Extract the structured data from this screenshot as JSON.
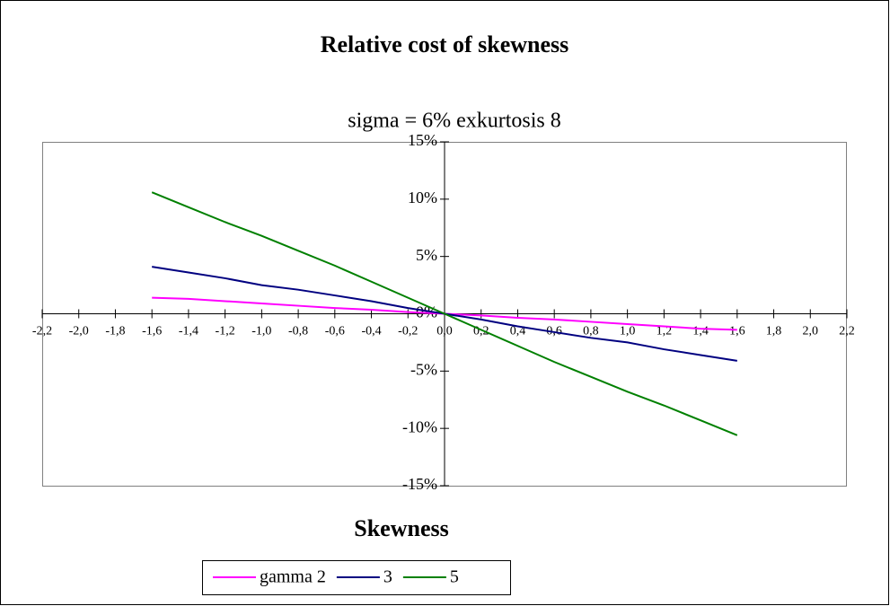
{
  "chart_data": {
    "type": "line",
    "title": "Relative cost of skewness",
    "subtitle": "sigma = 6%  exkurtosis 8",
    "x_label": "Skewness",
    "x": [
      -1.6,
      -1.4,
      -1.2,
      -1.0,
      -0.8,
      -0.6,
      -0.4,
      -0.2,
      0.0,
      0.2,
      0.4,
      0.6,
      0.8,
      1.0,
      1.2,
      1.4,
      1.6
    ],
    "series": [
      {
        "name": "gamma 2",
        "color": "#ff00ff",
        "values": [
          1.4,
          1.3,
          1.1,
          0.9,
          0.7,
          0.5,
          0.35,
          0.15,
          0,
          -0.15,
          -0.35,
          -0.5,
          -0.7,
          -0.9,
          -1.1,
          -1.3,
          -1.4
        ]
      },
      {
        "name": "3",
        "color": "#000080",
        "values": [
          4.1,
          3.6,
          3.1,
          2.5,
          2.1,
          1.6,
          1.1,
          0.5,
          0,
          -0.5,
          -1.1,
          -1.6,
          -2.1,
          -2.5,
          -3.1,
          -3.6,
          -4.1
        ]
      },
      {
        "name": "5",
        "color": "#008000",
        "values": [
          10.6,
          9.3,
          8.0,
          6.8,
          5.5,
          4.2,
          2.8,
          1.4,
          0,
          -1.4,
          -2.8,
          -4.2,
          -5.5,
          -6.8,
          -8.0,
          -9.3,
          -10.6
        ]
      }
    ],
    "xlim": [
      -2.2,
      2.2
    ],
    "xticks": [
      {
        "value": -2.2,
        "label": "-2,2"
      },
      {
        "value": -2.0,
        "label": "-2,0"
      },
      {
        "value": -1.8,
        "label": "-1,8"
      },
      {
        "value": -1.6,
        "label": "-1,6"
      },
      {
        "value": -1.4,
        "label": "-1,4"
      },
      {
        "value": -1.2,
        "label": "-1,2"
      },
      {
        "value": -1.0,
        "label": "-1,0"
      },
      {
        "value": -0.8,
        "label": "-0,8"
      },
      {
        "value": -0.6,
        "label": "-0,6"
      },
      {
        "value": -0.4,
        "label": "-0,4"
      },
      {
        "value": -0.2,
        "label": "-0,2"
      },
      {
        "value": 0.0,
        "label": "0,0"
      },
      {
        "value": 0.2,
        "label": "0,2"
      },
      {
        "value": 0.4,
        "label": "0,4"
      },
      {
        "value": 0.6,
        "label": "0,6"
      },
      {
        "value": 0.8,
        "label": "0,8"
      },
      {
        "value": 1.0,
        "label": "1,0"
      },
      {
        "value": 1.2,
        "label": "1,2"
      },
      {
        "value": 1.4,
        "label": "1,4"
      },
      {
        "value": 1.6,
        "label": "1,6"
      },
      {
        "value": 1.8,
        "label": "1,8"
      },
      {
        "value": 2.0,
        "label": "2,0"
      },
      {
        "value": 2.2,
        "label": "2,2"
      }
    ],
    "ylim": [
      -15,
      15
    ],
    "yticks": [
      {
        "value": -15,
        "label": "-15%"
      },
      {
        "value": -10,
        "label": "-10%"
      },
      {
        "value": -5,
        "label": "-5%"
      },
      {
        "value": 0,
        "label": "0%"
      },
      {
        "value": 5,
        "label": "5%"
      },
      {
        "value": 10,
        "label": "10%"
      },
      {
        "value": 15,
        "label": "15%"
      }
    ],
    "grid": false,
    "legend": "bottom"
  }
}
